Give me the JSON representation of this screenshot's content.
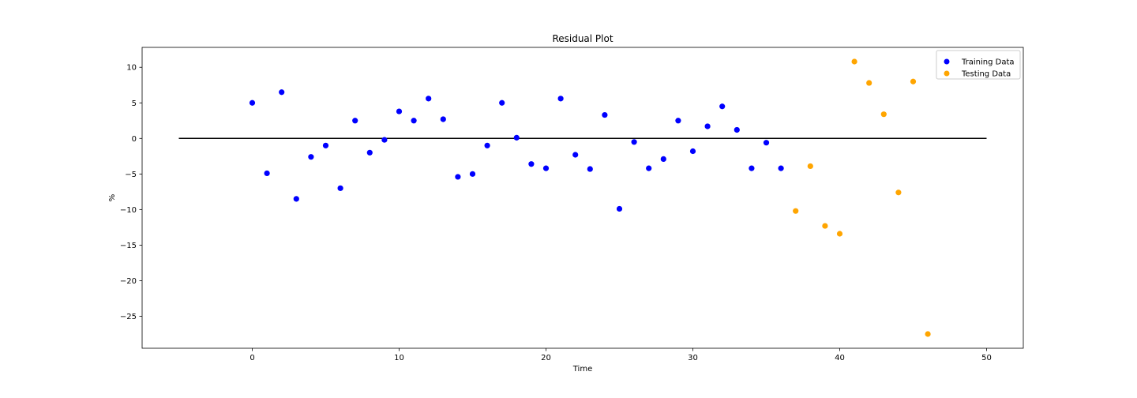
{
  "chart_data": {
    "type": "scatter",
    "title": "Residual Plot",
    "xlabel": "Time",
    "ylabel": "%",
    "xlim": [
      -7.5,
      52.5
    ],
    "ylim": [
      -29.5,
      12.8
    ],
    "xticks": [
      0,
      10,
      20,
      30,
      40,
      50
    ],
    "yticks": [
      10,
      5,
      0,
      -5,
      -10,
      -15,
      -20,
      -25
    ],
    "grid": false,
    "legend_position": "top-right",
    "hline": {
      "y": 0,
      "xmin": -5,
      "xmax": 50,
      "color": "#000000"
    },
    "series": [
      {
        "name": "Training Data",
        "color": "#0000ff",
        "points": [
          [
            0,
            5.0
          ],
          [
            1,
            -4.9
          ],
          [
            2,
            6.5
          ],
          [
            3,
            -8.5
          ],
          [
            4,
            -2.6
          ],
          [
            5,
            -1.0
          ],
          [
            6,
            -7.0
          ],
          [
            7,
            2.5
          ],
          [
            8,
            -2.0
          ],
          [
            9,
            -0.2
          ],
          [
            10,
            3.8
          ],
          [
            11,
            2.5
          ],
          [
            12,
            5.6
          ],
          [
            13,
            2.7
          ],
          [
            14,
            -5.4
          ],
          [
            15,
            -5.0
          ],
          [
            16,
            -1.0
          ],
          [
            17,
            5.0
          ],
          [
            18,
            0.1
          ],
          [
            19,
            -3.6
          ],
          [
            20,
            -4.2
          ],
          [
            21,
            5.6
          ],
          [
            22,
            -2.3
          ],
          [
            23,
            -4.3
          ],
          [
            24,
            3.3
          ],
          [
            25,
            -9.9
          ],
          [
            26,
            -0.5
          ],
          [
            27,
            -4.2
          ],
          [
            28,
            -2.9
          ],
          [
            29,
            2.5
          ],
          [
            30,
            -1.8
          ],
          [
            31,
            1.7
          ],
          [
            32,
            4.5
          ],
          [
            33,
            1.2
          ],
          [
            34,
            -4.2
          ],
          [
            35,
            -0.6
          ],
          [
            36,
            -4.2
          ]
        ]
      },
      {
        "name": "Testing Data",
        "color": "#ffa500",
        "points": [
          [
            37,
            -10.2
          ],
          [
            38,
            -3.9
          ],
          [
            39,
            -12.3
          ],
          [
            40,
            -13.4
          ],
          [
            41,
            10.8
          ],
          [
            42,
            7.8
          ],
          [
            43,
            3.4
          ],
          [
            44,
            -7.6
          ],
          [
            45,
            8.0
          ],
          [
            46,
            -27.5
          ]
        ]
      }
    ]
  }
}
